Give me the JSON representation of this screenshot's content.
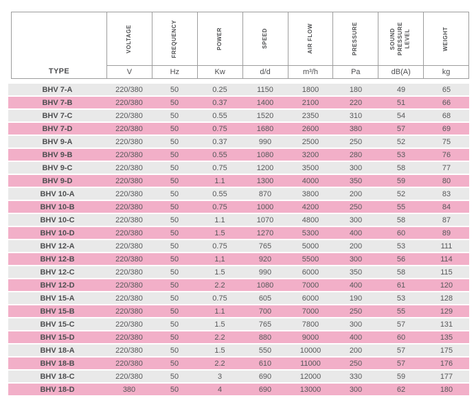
{
  "table": {
    "type_label": "TYPE",
    "columns": [
      {
        "label": "VOLTAGE",
        "unit": "V"
      },
      {
        "label": "FREQUENCY",
        "unit": "Hz"
      },
      {
        "label": "POWER",
        "unit": "Kw"
      },
      {
        "label": "SPEED",
        "unit": "d/d"
      },
      {
        "label": "AIR FLOW",
        "unit": "m³/h"
      },
      {
        "label": "PRESSURE",
        "unit": "Pa"
      },
      {
        "label": "SOUND\nPRESSURE\nLEVEL",
        "unit": "dB(A)"
      },
      {
        "label": "WEIGHT",
        "unit": "kg"
      }
    ],
    "rows": [
      [
        "BHV 7-A",
        "220/380",
        "50",
        "0.25",
        "1150",
        "1800",
        "180",
        "49",
        "65"
      ],
      [
        "BHV 7-B",
        "220/380",
        "50",
        "0.37",
        "1400",
        "2100",
        "220",
        "51",
        "66"
      ],
      [
        "BHV 7-C",
        "220/380",
        "50",
        "0.55",
        "1520",
        "2350",
        "310",
        "54",
        "68"
      ],
      [
        "BHV 7-D",
        "220/380",
        "50",
        "0.75",
        "1680",
        "2600",
        "380",
        "57",
        "69"
      ],
      [
        "BHV 9-A",
        "220/380",
        "50",
        "0.37",
        "990",
        "2500",
        "250",
        "52",
        "75"
      ],
      [
        "BHV 9-B",
        "220/380",
        "50",
        "0.55",
        "1080",
        "3200",
        "280",
        "53",
        "76"
      ],
      [
        "BHV 9-C",
        "220/380",
        "50",
        "0.75",
        "1200",
        "3500",
        "300",
        "58",
        "77"
      ],
      [
        "BHV 9-D",
        "220/380",
        "50",
        "1.1",
        "1300",
        "4000",
        "350",
        "59",
        "80"
      ],
      [
        "BHV 10-A",
        "220/380",
        "50",
        "0.55",
        "870",
        "3800",
        "200",
        "52",
        "83"
      ],
      [
        "BHV 10-B",
        "220/380",
        "50",
        "0.75",
        "1000",
        "4200",
        "250",
        "55",
        "84"
      ],
      [
        "BHV 10-C",
        "220/380",
        "50",
        "1.1",
        "1070",
        "4800",
        "300",
        "58",
        "87"
      ],
      [
        "BHV 10-D",
        "220/380",
        "50",
        "1.5",
        "1270",
        "5300",
        "400",
        "60",
        "89"
      ],
      [
        "BHV 12-A",
        "220/380",
        "50",
        "0.75",
        "765",
        "5000",
        "200",
        "53",
        "111"
      ],
      [
        "BHV 12-B",
        "220/380",
        "50",
        "1,1",
        "920",
        "5500",
        "300",
        "56",
        "114"
      ],
      [
        "BHV 12-C",
        "220/380",
        "50",
        "1.5",
        "990",
        "6000",
        "350",
        "58",
        "115"
      ],
      [
        "BHV 12-D",
        "220/380",
        "50",
        "2.2",
        "1080",
        "7000",
        "400",
        "61",
        "120"
      ],
      [
        "BHV 15-A",
        "220/380",
        "50",
        "0.75",
        "605",
        "6000",
        "190",
        "53",
        "128"
      ],
      [
        "BHV 15-B",
        "220/380",
        "50",
        "1.1",
        "700",
        "7000",
        "250",
        "55",
        "129"
      ],
      [
        "BHV 15-C",
        "220/380",
        "50",
        "1.5",
        "765",
        "7800",
        "300",
        "57",
        "131"
      ],
      [
        "BHV 15-D",
        "220/380",
        "50",
        "2.2",
        "880",
        "9000",
        "400",
        "60",
        "135"
      ],
      [
        "BHV 18-A",
        "220/380",
        "50",
        "1.5",
        "550",
        "10000",
        "200",
        "57",
        "175"
      ],
      [
        "BHV 18-B",
        "220/380",
        "50",
        "2.2",
        "610",
        "11000",
        "250",
        "57",
        "176"
      ],
      [
        "BHV 18-C",
        "220/380",
        "50",
        "3",
        "690",
        "12000",
        "330",
        "59",
        "177"
      ],
      [
        "BHV 18-D",
        "380",
        "50",
        "4",
        "690",
        "13000",
        "300",
        "62",
        "180"
      ]
    ],
    "row_colors": {
      "even": "#e9e9e9",
      "odd": "#f2afc8"
    },
    "border_color": "#9c9c9c",
    "text_color": "#565759"
  }
}
